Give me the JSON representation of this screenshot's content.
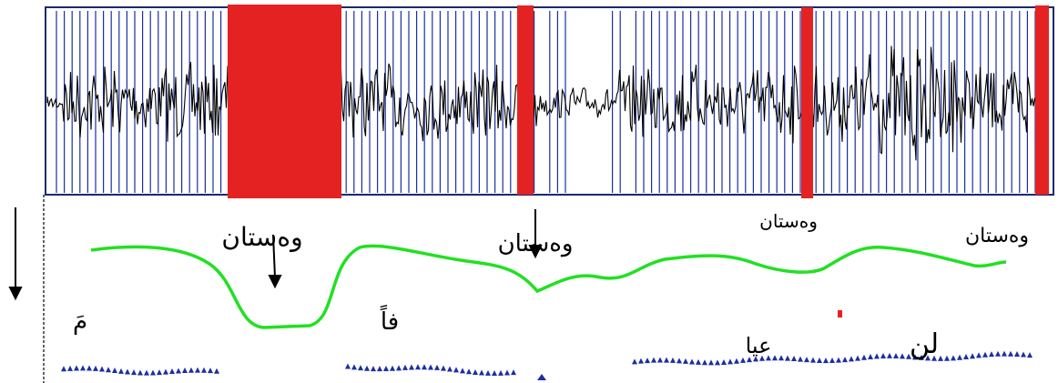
{
  "labels": {
    "pause_1": "وەستان",
    "pause_2": "وەستان",
    "pause_3": "وەستان",
    "pause_4": "وەستان"
  },
  "syllables": {
    "s1": "مَ",
    "s2": "فاً",
    "s3": "عيا",
    "s4": "لن"
  }
}
